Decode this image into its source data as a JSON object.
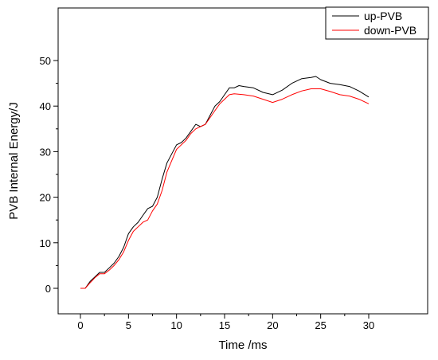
{
  "chart_data": {
    "type": "line",
    "title": "",
    "xlabel": "Time /ms",
    "ylabel": "PVB Internal Energy/J",
    "xlim": [
      -2,
      32
    ],
    "ylim": [
      -4,
      53
    ],
    "xticks": [
      0,
      5,
      10,
      15,
      20,
      25,
      30
    ],
    "yticks": [
      0,
      10,
      20,
      30,
      40,
      50
    ],
    "grid": false,
    "legend_position": "top-right",
    "series": [
      {
        "name": "up-PVB",
        "color": "#000000",
        "points": [
          [
            0,
            0
          ],
          [
            0.5,
            0
          ],
          [
            1,
            1.5
          ],
          [
            1.5,
            2.5
          ],
          [
            2,
            3.5
          ],
          [
            2.5,
            3.5
          ],
          [
            3,
            4.5
          ],
          [
            3.5,
            5.5
          ],
          [
            4,
            7
          ],
          [
            4.5,
            9
          ],
          [
            5,
            12
          ],
          [
            5.5,
            13.5
          ],
          [
            6,
            14.5
          ],
          [
            6.5,
            16
          ],
          [
            7,
            17.5
          ],
          [
            7.5,
            18
          ],
          [
            8,
            20
          ],
          [
            8.5,
            24
          ],
          [
            9,
            27.5
          ],
          [
            9.5,
            29.5
          ],
          [
            10,
            31.5
          ],
          [
            10.5,
            32
          ],
          [
            11,
            33
          ],
          [
            11.5,
            34.5
          ],
          [
            12,
            36
          ],
          [
            12.5,
            35.5
          ],
          [
            13,
            36
          ],
          [
            13.5,
            38
          ],
          [
            14,
            40
          ],
          [
            14.5,
            41
          ],
          [
            15,
            42.5
          ],
          [
            15.5,
            44
          ],
          [
            16,
            44
          ],
          [
            16.5,
            44.5
          ],
          [
            17,
            44.3
          ],
          [
            18,
            44
          ],
          [
            19,
            43
          ],
          [
            20,
            42.5
          ],
          [
            21,
            43.5
          ],
          [
            22,
            45
          ],
          [
            23,
            46
          ],
          [
            24,
            46.3
          ],
          [
            24.5,
            46.5
          ],
          [
            25,
            45.8
          ],
          [
            26,
            45
          ],
          [
            27,
            44.7
          ],
          [
            28,
            44.3
          ],
          [
            29,
            43.3
          ],
          [
            30,
            42
          ]
        ]
      },
      {
        "name": "down-PVB",
        "color": "#ff0000",
        "points": [
          [
            0,
            0
          ],
          [
            0.5,
            0
          ],
          [
            1,
            1.2
          ],
          [
            1.5,
            2.3
          ],
          [
            2,
            3.2
          ],
          [
            2.5,
            3.2
          ],
          [
            3,
            4
          ],
          [
            3.5,
            5
          ],
          [
            4,
            6.3
          ],
          [
            4.5,
            8
          ],
          [
            5,
            10.5
          ],
          [
            5.5,
            12.5
          ],
          [
            6,
            13.5
          ],
          [
            6.5,
            14.5
          ],
          [
            7,
            15
          ],
          [
            7.5,
            17
          ],
          [
            8,
            18.5
          ],
          [
            8.5,
            21.5
          ],
          [
            9,
            25.5
          ],
          [
            9.5,
            28
          ],
          [
            10,
            30.5
          ],
          [
            10.5,
            31.5
          ],
          [
            11,
            32.5
          ],
          [
            11.5,
            34
          ],
          [
            12,
            35
          ],
          [
            12.5,
            35.5
          ],
          [
            13,
            36
          ],
          [
            13.5,
            37.5
          ],
          [
            14,
            39
          ],
          [
            14.5,
            40.5
          ],
          [
            15,
            41.5
          ],
          [
            15.5,
            42.5
          ],
          [
            16,
            42.7
          ],
          [
            17,
            42.5
          ],
          [
            18,
            42.2
          ],
          [
            19,
            41.5
          ],
          [
            20,
            40.8
          ],
          [
            21,
            41.5
          ],
          [
            22,
            42.5
          ],
          [
            23,
            43.3
          ],
          [
            24,
            43.8
          ],
          [
            25,
            43.8
          ],
          [
            26,
            43.2
          ],
          [
            27,
            42.5
          ],
          [
            28,
            42.2
          ],
          [
            29,
            41.5
          ],
          [
            30,
            40.5
          ]
        ]
      }
    ]
  }
}
